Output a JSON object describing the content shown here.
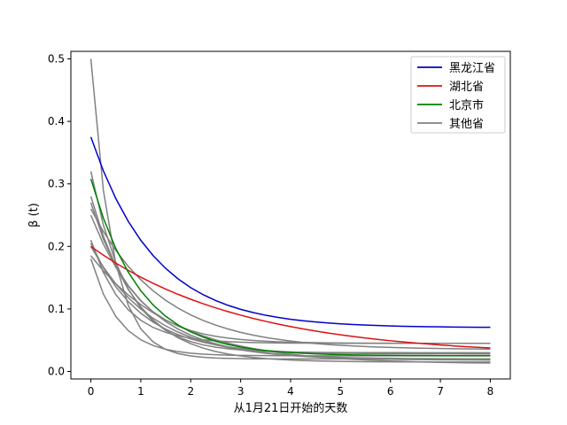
{
  "chart_data": {
    "type": "line",
    "xlabel": "从1月21日开始的天数",
    "ylabel": "β (t)",
    "xlim": [
      -0.4,
      8.4
    ],
    "ylim": [
      -0.012,
      0.512
    ],
    "xticks": [
      0,
      1,
      2,
      3,
      4,
      5,
      6,
      7,
      8
    ],
    "yticks": [
      0.0,
      0.1,
      0.2,
      0.3,
      0.4,
      0.5
    ],
    "grid": false,
    "legend_position": "top-right",
    "x": [
      0,
      0.25,
      0.5,
      0.75,
      1,
      1.25,
      1.5,
      1.75,
      2,
      2.25,
      2.5,
      2.75,
      3,
      3.25,
      3.5,
      3.75,
      4,
      4.25,
      4.5,
      4.75,
      5,
      5.25,
      5.5,
      5.75,
      6,
      6.25,
      6.5,
      6.75,
      7,
      7.25,
      7.5,
      7.75,
      8
    ],
    "series": [
      {
        "name": "黑龙江省",
        "color": "#0000cc",
        "start": 0.375,
        "end": 0.07,
        "rate": 0.78
      },
      {
        "name": "湖北省",
        "color": "#dd1111",
        "start": 0.2,
        "end": 0.025,
        "rate": 0.33
      },
      {
        "name": "北京市",
        "color": "#008000",
        "start": 0.308,
        "end": 0.025,
        "rate": 1.0
      },
      {
        "name": "其他省",
        "color": "#808080",
        "start": 0.5,
        "end": 0.02,
        "rate": 2.3
      },
      {
        "name": "",
        "color": "#808080",
        "start": 0.32,
        "end": 0.03,
        "rate": 1.4
      },
      {
        "name": "",
        "color": "#808080",
        "start": 0.28,
        "end": 0.015,
        "rate": 1.1
      },
      {
        "name": "",
        "color": "#808080",
        "start": 0.27,
        "end": 0.045,
        "rate": 1.2
      },
      {
        "name": "",
        "color": "#808080",
        "start": 0.26,
        "end": 0.035,
        "rate": 0.7
      },
      {
        "name": "",
        "color": "#808080",
        "start": 0.25,
        "end": 0.02,
        "rate": 0.9
      },
      {
        "name": "",
        "color": "#808080",
        "start": 0.21,
        "end": 0.045,
        "rate": 1.5
      },
      {
        "name": "",
        "color": "#808080",
        "start": 0.205,
        "end": 0.028,
        "rate": 1.0
      },
      {
        "name": "",
        "color": "#808080",
        "start": 0.2,
        "end": 0.018,
        "rate": 0.8
      },
      {
        "name": "",
        "color": "#808080",
        "start": 0.185,
        "end": 0.012,
        "rate": 0.6
      },
      {
        "name": "",
        "color": "#808080",
        "start": 0.18,
        "end": 0.025,
        "rate": 1.8
      }
    ],
    "legend": [
      {
        "label": "黑龙江省",
        "color": "#0000cc"
      },
      {
        "label": "湖北省",
        "color": "#dd1111"
      },
      {
        "label": "北京市",
        "color": "#008000"
      },
      {
        "label": "其他省",
        "color": "#808080"
      }
    ]
  }
}
